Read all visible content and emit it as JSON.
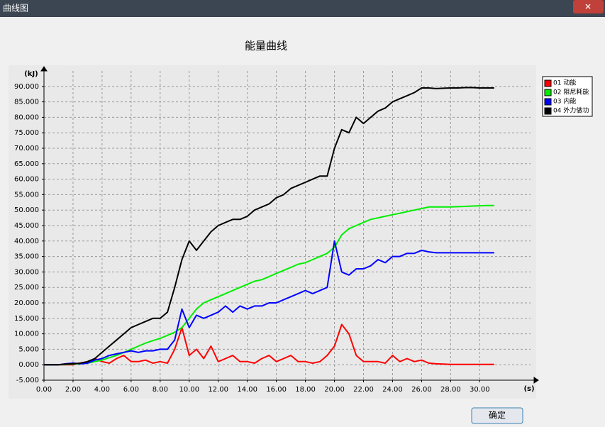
{
  "window": {
    "title": "曲线图"
  },
  "button": "确定",
  "chart_data": {
    "type": "line",
    "title": "能量曲线",
    "x_label": "(s)",
    "y_label": "(kJ)",
    "grid": true,
    "legend": "top-right",
    "xlim": [
      0,
      33.5
    ],
    "ylim": [
      -5,
      95
    ],
    "xticks": [
      {
        "value": 0,
        "label": "0.00"
      },
      {
        "value": 2,
        "label": "2.00"
      },
      {
        "value": 4,
        "label": "4.00"
      },
      {
        "value": 6,
        "label": "6.00"
      },
      {
        "value": 8,
        "label": "8.00"
      },
      {
        "value": 10,
        "label": "10.00"
      },
      {
        "value": 12,
        "label": "12.00"
      },
      {
        "value": 14,
        "label": "14.00"
      },
      {
        "value": 16,
        "label": "16.00"
      },
      {
        "value": 18,
        "label": "18.00"
      },
      {
        "value": 20,
        "label": "20.00"
      },
      {
        "value": 22,
        "label": "22.00"
      },
      {
        "value": 24,
        "label": "24.00"
      },
      {
        "value": 26,
        "label": "26.00"
      },
      {
        "value": 28,
        "label": "28.00"
      },
      {
        "value": 30,
        "label": "30.00"
      }
    ],
    "yticks": [
      {
        "value": -5,
        "label": "-5.000"
      },
      {
        "value": 0,
        "label": "0.000"
      },
      {
        "value": 5,
        "label": "5.000"
      },
      {
        "value": 10,
        "label": "10.000"
      },
      {
        "value": 15,
        "label": "15.000"
      },
      {
        "value": 20,
        "label": "20.000"
      },
      {
        "value": 25,
        "label": "25.000"
      },
      {
        "value": 30,
        "label": "30.000"
      },
      {
        "value": 35,
        "label": "35.000"
      },
      {
        "value": 40,
        "label": "40.000"
      },
      {
        "value": 45,
        "label": "45.000"
      },
      {
        "value": 50,
        "label": "50.000"
      },
      {
        "value": 55,
        "label": "55.000"
      },
      {
        "value": 60,
        "label": "60.000"
      },
      {
        "value": 65,
        "label": "65.000"
      },
      {
        "value": 70,
        "label": "70.000"
      },
      {
        "value": 75,
        "label": "75.000"
      },
      {
        "value": 80,
        "label": "80.000"
      },
      {
        "value": 85,
        "label": "85.000"
      },
      {
        "value": 90,
        "label": "90.000"
      }
    ],
    "x": [
      0,
      0.5,
      1,
      1.5,
      2,
      2.5,
      3,
      3.5,
      4,
      4.5,
      5,
      5.5,
      6,
      6.5,
      7,
      7.5,
      8,
      8.5,
      9,
      9.5,
      10,
      10.5,
      11,
      11.5,
      12,
      12.5,
      13,
      13.5,
      14,
      14.5,
      15,
      15.5,
      16,
      16.5,
      17,
      17.5,
      18,
      18.5,
      19,
      19.5,
      20,
      20.5,
      21,
      21.5,
      22,
      22.5,
      23,
      23.5,
      24,
      24.5,
      25,
      25.5,
      26,
      26.5,
      27,
      27.5,
      28,
      28.5,
      29,
      29.5,
      30,
      30.5,
      31
    ],
    "series": [
      {
        "name": "01 动能",
        "color": "#ff0000",
        "values": [
          0,
          0,
          0,
          0,
          0,
          0.5,
          1,
          2,
          1,
          0.5,
          2,
          3,
          1,
          1,
          1.5,
          0.5,
          1,
          0.5,
          5,
          12,
          3,
          5,
          2,
          6,
          1,
          2,
          3,
          1,
          1,
          0.5,
          2,
          3,
          1,
          2,
          3,
          1,
          1,
          0.5,
          1,
          3,
          6,
          13,
          10,
          3,
          1,
          1,
          1,
          0.5,
          3,
          1,
          2,
          1,
          1.5,
          0.5,
          0.3,
          0.2,
          0.1,
          0.1,
          0.1,
          0.1,
          0.1,
          0.1,
          0.1
        ]
      },
      {
        "name": "02 阻尼耗能",
        "color": "#00ee00",
        "values": [
          0,
          0,
          0,
          0.1,
          0.2,
          0.3,
          0.5,
          1,
          1.5,
          2.3,
          3,
          4,
          5,
          6,
          7,
          7.8,
          8.5,
          9.5,
          10.5,
          12,
          15,
          18,
          20,
          21,
          22,
          23,
          24,
          25,
          26,
          27,
          27.5,
          28.5,
          29.5,
          30.5,
          31.5,
          32.5,
          33,
          34,
          35,
          36,
          38,
          42,
          44,
          45,
          46,
          47,
          47.5,
          48,
          48.5,
          49,
          49.5,
          50,
          50.5,
          51,
          51,
          51,
          51,
          51.1,
          51.2,
          51.3,
          51.4,
          51.5,
          51.5
        ]
      },
      {
        "name": "03 内能",
        "color": "#0000ff",
        "values": [
          0,
          0,
          0,
          0.3,
          0.5,
          0.3,
          0.5,
          1.5,
          2,
          3,
          3.5,
          4,
          4.5,
          4,
          4.5,
          4.5,
          5,
          5,
          8,
          18,
          12,
          16,
          15,
          16,
          17,
          19,
          17,
          19,
          18,
          19,
          19,
          20,
          20,
          21,
          22,
          23,
          24,
          23,
          24,
          25,
          40,
          30,
          29,
          31,
          31,
          32,
          34,
          33,
          35,
          35,
          36,
          36,
          37,
          36.5,
          36.2,
          36.2,
          36.2,
          36.2,
          36.2,
          36.2,
          36.2,
          36.2,
          36.2
        ]
      },
      {
        "name": "04 外力做功",
        "color": "#000000",
        "values": [
          0,
          0,
          0,
          0.2,
          0.3,
          0.5,
          1,
          2,
          4,
          6,
          8,
          10,
          12,
          13,
          14,
          15,
          15,
          17,
          25,
          34,
          40,
          37,
          40,
          43,
          45,
          46,
          47,
          47,
          48,
          50,
          51,
          52,
          54,
          55,
          57,
          58,
          59,
          60,
          61,
          61,
          70,
          76,
          75,
          80,
          78,
          80,
          82,
          83,
          85,
          86,
          87,
          88,
          89.5,
          89.5,
          89.3,
          89.4,
          89.5,
          89.5,
          89.6,
          89.6,
          89.5,
          89.5,
          89.5
        ]
      }
    ]
  }
}
